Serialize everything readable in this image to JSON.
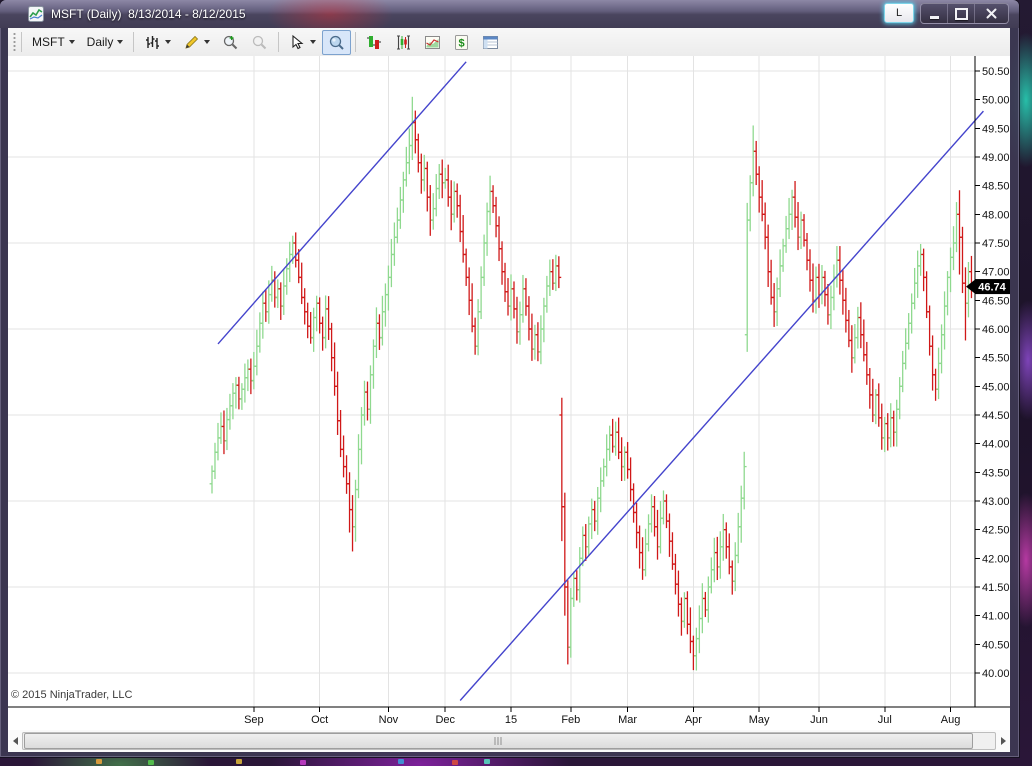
{
  "window": {
    "title": "MSFT (Daily)  8/13/2014 - 8/12/2015",
    "link_button": "L",
    "controls": [
      "minimize",
      "maximize",
      "close"
    ]
  },
  "toolbar": {
    "instrument_label": "MSFT",
    "period_label": "Daily",
    "dollar_glyph": "$",
    "icons": [
      "bar-type-selector",
      "drawing-tools",
      "zoom-in",
      "zoom-out",
      "cursor-tool",
      "data-box",
      "chart-trader",
      "chart-style",
      "mini-chart",
      "account-dollar",
      "data-grid"
    ]
  },
  "chart_data": {
    "type": "ohlc-bar",
    "symbol": "MSFT",
    "interval": "Daily",
    "date_range": "8/13/2014 - 8/12/2015",
    "title": "MSFT (Daily) 8/13/2014 - 8/12/2015",
    "last_price": "46.74",
    "copyright": "© 2015 NinjaTrader, LLC",
    "y_axis": {
      "labels": [
        "50.50",
        "50.00",
        "49.50",
        "49.00",
        "48.50",
        "48.00",
        "47.50",
        "47.00",
        "46.50",
        "46.00",
        "45.50",
        "45.00",
        "44.50",
        "44.00",
        "43.50",
        "43.00",
        "42.50",
        "42.00",
        "41.50",
        "41.00",
        "40.50",
        "40.00"
      ],
      "top_price": 50.5,
      "bottom_price": 40.0,
      "step": 0.5
    },
    "x_axis": {
      "labels": [
        "Sep",
        "Oct",
        "Nov",
        "Dec",
        "15",
        "Feb",
        "Mar",
        "Apr",
        "May",
        "Jun",
        "Jul",
        "Aug"
      ],
      "month_start_indices": [
        14,
        36,
        59,
        78,
        100,
        120,
        139,
        161,
        183,
        203,
        225,
        247
      ]
    },
    "gridlines_price": [
      50.5,
      49.0,
      47.5,
      46.0,
      44.5,
      43.0,
      41.5,
      40.0
    ],
    "closes": [
      43.52,
      43.85,
      44.1,
      44.3,
      44.05,
      44.42,
      44.66,
      44.88,
      45.02,
      44.78,
      44.95,
      45.15,
      45.3,
      45.1,
      45.35,
      45.7,
      46.1,
      46.45,
      46.3,
      46.6,
      46.85,
      46.55,
      46.7,
      46.4,
      46.75,
      47.05,
      47.3,
      47.5,
      47.2,
      46.9,
      46.55,
      46.3,
      46.05,
      45.85,
      46.2,
      46.45,
      46.1,
      45.85,
      46.35,
      46.0,
      45.5,
      45.0,
      44.4,
      43.9,
      43.6,
      43.3,
      42.85,
      42.55,
      43.2,
      43.9,
      44.5,
      44.9,
      44.6,
      45.2,
      45.7,
      46.1,
      45.85,
      46.3,
      46.6,
      46.9,
      47.3,
      47.6,
      47.9,
      48.25,
      48.6,
      48.9,
      49.2,
      49.6,
      49.3,
      48.9,
      48.6,
      48.8,
      48.3,
      47.9,
      48.1,
      48.45,
      48.7,
      48.55,
      48.6,
      48.3,
      48.0,
      48.4,
      48.15,
      47.7,
      47.3,
      46.9,
      46.5,
      46.05,
      45.7,
      46.3,
      46.9,
      47.5,
      48.05,
      48.4,
      48.15,
      47.8,
      47.4,
      47.0,
      46.65,
      46.4,
      46.7,
      46.35,
      45.95,
      46.25,
      46.7,
      46.4,
      46.0,
      45.65,
      45.9,
      45.6,
      46.0,
      46.4,
      46.75,
      47.0,
      46.8,
      47.1,
      46.9,
      42.9,
      41.5,
      40.45,
      41.3,
      41.65,
      41.45,
      42.0,
      42.4,
      42.2,
      42.6,
      42.85,
      42.65,
      43.05,
      43.35,
      43.6,
      43.9,
      44.15,
      43.95,
      44.2,
      43.85,
      43.6,
      43.85,
      43.55,
      43.2,
      42.8,
      42.45,
      42.1,
      41.8,
      42.25,
      42.6,
      42.9,
      42.55,
      42.2,
      42.7,
      43.0,
      42.65,
      42.3,
      41.9,
      41.55,
      41.2,
      40.9,
      41.3,
      40.85,
      40.55,
      40.3,
      40.6,
      40.95,
      41.3,
      41.1,
      41.5,
      41.8,
      42.1,
      41.85,
      42.2,
      42.5,
      42.2,
      41.85,
      41.6,
      42.05,
      42.55,
      43.05,
      43.6,
      47.9,
      48.55,
      49.1,
      48.7,
      48.3,
      48.0,
      47.6,
      47.0,
      46.55,
      46.3,
      46.7,
      47.1,
      47.45,
      47.75,
      48.0,
      48.3,
      47.95,
      47.6,
      47.9,
      47.55,
      47.2,
      46.85,
      46.5,
      46.9,
      46.6,
      46.9,
      46.6,
      46.25,
      46.55,
      46.9,
      47.2,
      46.85,
      46.5,
      46.15,
      45.8,
      45.5,
      45.85,
      46.2,
      45.9,
      45.55,
      45.2,
      44.85,
      44.5,
      44.85,
      44.45,
      44.1,
      44.35,
      44.1,
      44.45,
      44.2,
      44.6,
      45.0,
      45.4,
      45.75,
      46.1,
      46.45,
      46.8,
      47.1,
      47.3,
      46.9,
      46.3,
      45.7,
      45.2,
      44.95,
      45.4,
      45.9,
      46.4,
      46.9,
      47.25,
      47.5,
      48.0,
      47.6,
      46.8,
      46.45,
      47.0,
      46.74
    ],
    "bar_overrides": {
      "0": {
        "open": 43.3
      },
      "46": {
        "low": 42.45
      },
      "47": {
        "low": 42.12
      },
      "67": {
        "high": 50.05
      },
      "117": {
        "open": 44.5,
        "high": 44.8,
        "low": 42.3
      },
      "118": {
        "low": 41.0
      },
      "119": {
        "low": 40.15
      },
      "161": {
        "low": 40.05
      },
      "179": {
        "open": 45.9,
        "low": 45.6,
        "high": 48.2
      },
      "181": {
        "high": 49.55
      },
      "226": {
        "low": 43.88
      },
      "250": {
        "high": 48.42,
        "low": 46.95
      },
      "252": {
        "low": 45.8
      }
    },
    "trendlines": [
      {
        "x1_index": 2,
        "y1_price": 45.74,
        "x2_index": 85,
        "y2_price": 50.66
      },
      {
        "x1_index": 83,
        "y1_price": 39.52,
        "x2_index": 258,
        "y2_price": 49.8
      }
    ],
    "colors": {
      "up": "#8fd98f",
      "down": "#d01818",
      "trendline": "#4444cc",
      "grid": "#e3e3e3",
      "axis": "#000000",
      "badge_bg": "#000000",
      "badge_text": "#ffffff"
    },
    "legend_position": "none",
    "grid": true
  }
}
